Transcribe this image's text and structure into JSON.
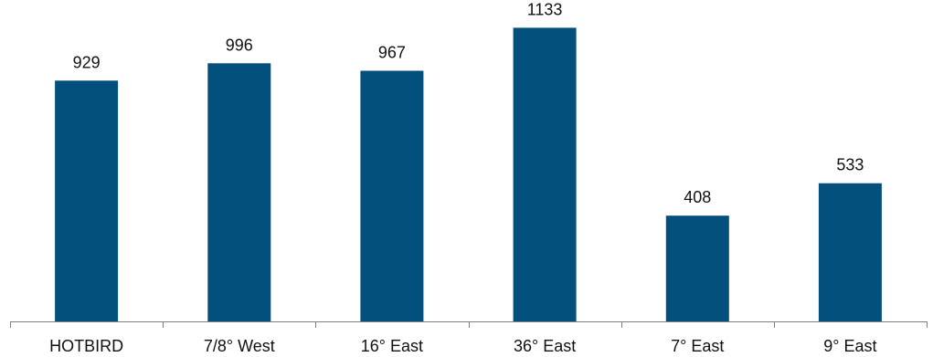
{
  "chart_data": {
    "type": "bar",
    "categories": [
      "HOTBIRD",
      "7/8° West",
      "16° East",
      "36° East",
      "7° East",
      "9° East"
    ],
    "values": [
      929,
      996,
      967,
      1133,
      408,
      533
    ],
    "data_labels": [
      "929",
      "996",
      "967",
      "1133",
      "408",
      "533"
    ],
    "ylim": [
      0,
      1240
    ],
    "grid": false,
    "legend": "none",
    "colors": {
      "bar": "#04507c",
      "axis": "#7f7f7f",
      "text": "#111111"
    }
  }
}
